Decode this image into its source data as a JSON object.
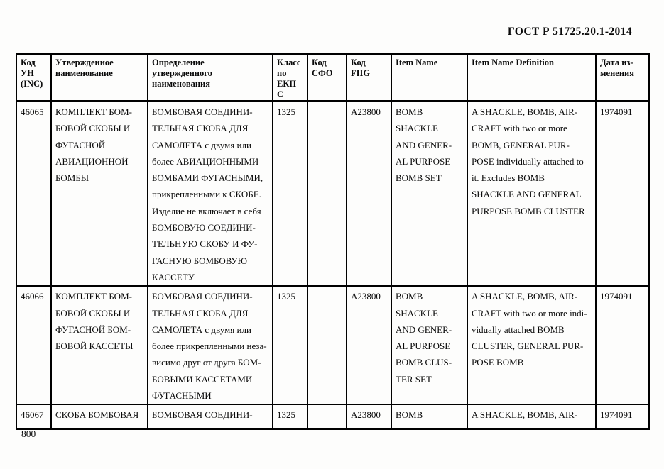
{
  "page": {
    "doc_title": "ГОСТ Р 51725.20.1-2014",
    "page_number": "800"
  },
  "table": {
    "headers": [
      "Код\nУН\n(INC)",
      "Утвержденное\nнаименование",
      "Определение\nутвержденного\nнаименования",
      "Класс\nпо\nЕКП\nС",
      "Код\nСФО",
      "Код\nFIIG",
      "Item Name",
      "Item Name Definition",
      "Дата из-\nменения"
    ],
    "rows": [
      {
        "cells": [
          "46065",
          "КОМПЛЕКТ БОМ-\nБОВОЙ СКОБЫ И\nФУГАСНОЙ\nАВИАЦИОННОЙ\nБОМБЫ",
          "БОМБОВАЯ СОЕДИНИ-\nТЕЛЬНАЯ СКОБА ДЛЯ\nСАМОЛЕТА с двумя или\nболее АВИАЦИОННЫМИ\nБОМБАМИ ФУГАСНЫМИ,\nприкрепленными к СКОБЕ.\nИзделие не включает в себя\nБОМБОВУЮ СОЕДИНИ-\nТЕЛЬНУЮ СКОБУ И ФУ-\nГАСНУЮ БОМБОВУЮ\nКАССЕТУ",
          "1325",
          "",
          "A23800",
          "BOMB\nSHACKLE\nAND GENER-\nAL PURPOSE\nBOMB SET",
          "A SHACKLE, BOMB, AIR-\nCRAFT with two or more\nBOMB, GENERAL PUR-\nPOSE individually attached to\nit. Excludes BOMB\nSHACKLE AND GENERAL\nPURPOSE BOMB CLUSTER",
          "1974091"
        ]
      },
      {
        "cells": [
          "46066",
          "КОМПЛЕКТ БОМ-\nБОВОЙ СКОБЫ И\nФУГАСНОЙ БОМ-\nБОВОЙ КАССЕТЫ",
          "БОМБОВАЯ СОЕДИНИ-\nТЕЛЬНАЯ СКОБА ДЛЯ\nСАМОЛЕТА с двумя или\nболее прикрепленными неза-\nвисимо друг от друга БОМ-\nБОВЫМИ КАССЕТАМИ\nФУГАСНЫМИ",
          "1325",
          "",
          "A23800",
          "BOMB\nSHACKLE\nAND GENER-\nAL PURPOSE\nBOMB CLUS-\nTER SET",
          "A SHACKLE, BOMB, AIR-\nCRAFT with two or more indi-\nvidually attached BOMB\nCLUSTER, GENERAL PUR-\nPOSE BOMB",
          "1974091"
        ]
      },
      {
        "cells": [
          "46067",
          "СКОБА БОМБОВАЯ",
          "БОМБОВАЯ СОЕДИНИ-",
          "1325",
          "",
          "A23800",
          "BOMB",
          "A SHACKLE, BOMB, AIR-",
          "1974091"
        ]
      }
    ]
  }
}
